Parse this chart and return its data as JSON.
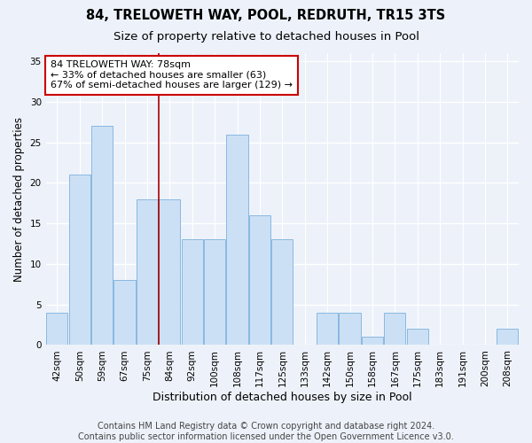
{
  "title1": "84, TRELOWETH WAY, POOL, REDRUTH, TR15 3TS",
  "title2": "Size of property relative to detached houses in Pool",
  "xlabel": "Distribution of detached houses by size in Pool",
  "ylabel": "Number of detached properties",
  "categories": [
    "42sqm",
    "50sqm",
    "59sqm",
    "67sqm",
    "75sqm",
    "84sqm",
    "92sqm",
    "100sqm",
    "108sqm",
    "117sqm",
    "125sqm",
    "133sqm",
    "142sqm",
    "150sqm",
    "158sqm",
    "167sqm",
    "175sqm",
    "183sqm",
    "191sqm",
    "200sqm",
    "208sqm"
  ],
  "values": [
    4,
    21,
    27,
    8,
    18,
    18,
    13,
    13,
    26,
    16,
    13,
    0,
    4,
    4,
    1,
    4,
    2,
    0,
    0,
    0,
    2
  ],
  "bar_color": "#cce0f5",
  "bar_edge_color": "#89b8e0",
  "vline_x": 4.5,
  "vline_color": "#aa0000",
  "annotation_box_text": "84 TRELOWETH WAY: 78sqm\n← 33% of detached houses are smaller (63)\n67% of semi-detached houses are larger (129) →",
  "ylim": [
    0,
    36
  ],
  "yticks": [
    0,
    5,
    10,
    15,
    20,
    25,
    30,
    35
  ],
  "footer_text": "Contains HM Land Registry data © Crown copyright and database right 2024.\nContains public sector information licensed under the Open Government Licence v3.0.",
  "bg_color": "#edf2fa",
  "plot_bg_color": "#edf2fa",
  "grid_color": "#ffffff",
  "title1_fontsize": 10.5,
  "title2_fontsize": 9.5,
  "xlabel_fontsize": 9,
  "ylabel_fontsize": 8.5,
  "tick_fontsize": 7.5,
  "footer_fontsize": 7,
  "ann_fontsize": 8
}
